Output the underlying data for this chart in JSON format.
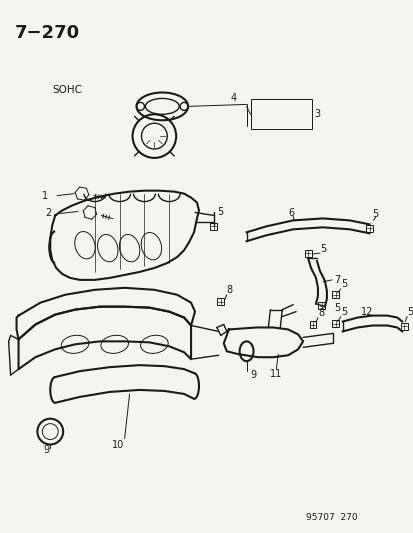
{
  "title": "7−270",
  "label_sohc": "SOHC",
  "footer": "95707  270",
  "bg_color": "#f5f5f0",
  "line_color": "#1a1a1a",
  "fig_w": 4.14,
  "fig_h": 5.33,
  "dpi": 100
}
